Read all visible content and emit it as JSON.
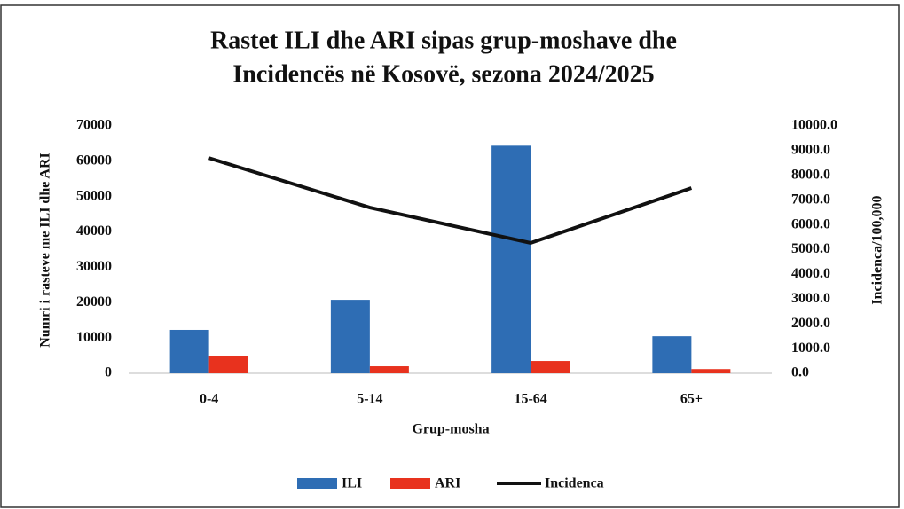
{
  "chart_data": {
    "type": "bar",
    "title": [
      "Rastet ILI dhe ARI sipas grup-moshave dhe",
      "Incidencës në Kosovë, sezona 2024/2025"
    ],
    "xlabel": "Grup-mosha",
    "ylabel": "Numri i rasteve me ILI dhe ARI",
    "y2label": "Incidenca/100,000",
    "categories": [
      "0-4",
      "5-14",
      "15-64",
      "65+"
    ],
    "series": [
      {
        "name": "ILI",
        "color": "#2e6db4",
        "type": "bar",
        "values": [
          12300,
          20800,
          64400,
          10500
        ]
      },
      {
        "name": "ARI",
        "color": "#e8321e",
        "type": "bar",
        "values": [
          5000,
          2000,
          3500,
          1200
        ]
      },
      {
        "name": "Incidenca",
        "color": "#111111",
        "type": "line",
        "axis": "y2",
        "values": [
          8700,
          6700,
          5270,
          7490
        ]
      }
    ],
    "ylim": [
      0,
      70000
    ],
    "yticks": [
      0,
      10000,
      20000,
      30000,
      40000,
      50000,
      60000,
      70000
    ],
    "y2lim": [
      0,
      10000
    ],
    "y2ticks": [
      {
        "value": 0,
        "label": "0.0"
      },
      {
        "value": 1000,
        "label": "1000.0"
      },
      {
        "value": 2000,
        "label": "2000.0"
      },
      {
        "value": 3000,
        "label": "3000.0"
      },
      {
        "value": 4000,
        "label": "4000.0"
      },
      {
        "value": 5000,
        "label": "5000.0"
      },
      {
        "value": 6000,
        "label": "6000.0"
      },
      {
        "value": 7000,
        "label": "7000.0"
      },
      {
        "value": 8000,
        "label": "8000.0"
      },
      {
        "value": 9000,
        "label": "9000.0"
      },
      {
        "value": 10000,
        "label": "10000.0"
      }
    ],
    "legend": "bottom"
  }
}
